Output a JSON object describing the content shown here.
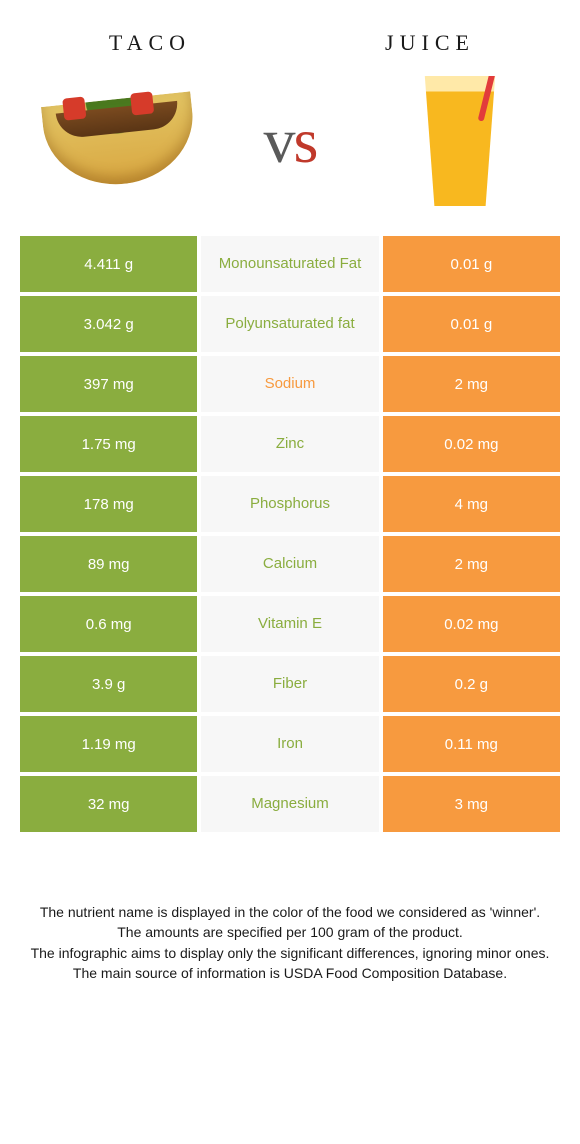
{
  "left_food": {
    "name": "Taco",
    "color": "#8aad3f"
  },
  "right_food": {
    "name": "Juice",
    "color": "#f79a3f"
  },
  "vs": "vs",
  "label_bg": "#f7f7f7",
  "rows": [
    {
      "left": "4.411 g",
      "label": "Monounsaturated Fat",
      "right": "0.01 g",
      "winner": "left"
    },
    {
      "left": "3.042 g",
      "label": "Polyunsaturated fat",
      "right": "0.01 g",
      "winner": "left"
    },
    {
      "left": "397 mg",
      "label": "Sodium",
      "right": "2 mg",
      "winner": "right"
    },
    {
      "left": "1.75 mg",
      "label": "Zinc",
      "right": "0.02 mg",
      "winner": "left"
    },
    {
      "left": "178 mg",
      "label": "Phosphorus",
      "right": "4 mg",
      "winner": "left"
    },
    {
      "left": "89 mg",
      "label": "Calcium",
      "right": "2 mg",
      "winner": "left"
    },
    {
      "left": "0.6 mg",
      "label": "Vitamin E",
      "right": "0.02 mg",
      "winner": "left"
    },
    {
      "left": "3.9 g",
      "label": "Fiber",
      "right": "0.2 g",
      "winner": "left"
    },
    {
      "left": "1.19 mg",
      "label": "Iron",
      "right": "0.11 mg",
      "winner": "left"
    },
    {
      "left": "32 mg",
      "label": "Magnesium",
      "right": "3 mg",
      "winner": "left"
    }
  ],
  "footer": [
    "The nutrient name is displayed in the color of the food we considered as 'winner'.",
    "The amounts are specified per 100 gram of the product.",
    "The infographic aims to display only the significant differences, ignoring minor ones.",
    "The main source of information is USDA Food Composition Database."
  ]
}
